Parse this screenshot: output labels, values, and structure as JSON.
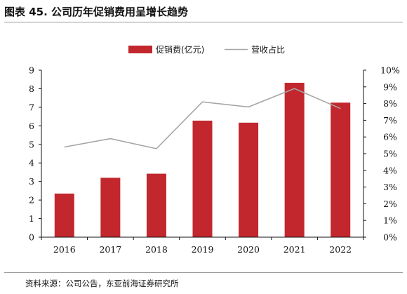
{
  "figure": {
    "title": "图表 45. 公司历年促销费用呈增长趋势",
    "source": "资料来源：公司公告，东亚前海证券研究所"
  },
  "colors": {
    "bar": "#c1272d",
    "line": "#a6a6a6",
    "axis": "#111111"
  },
  "chart_data": {
    "type": "bar",
    "categories": [
      "2016",
      "2017",
      "2018",
      "2019",
      "2020",
      "2021",
      "2022"
    ],
    "series": [
      {
        "name": "促销费(亿元)",
        "type": "bar",
        "axis": "left",
        "values": [
          2.35,
          3.2,
          3.42,
          6.28,
          6.17,
          8.32,
          7.25
        ]
      },
      {
        "name": "营收占比",
        "type": "line",
        "axis": "right",
        "values": [
          5.4,
          5.9,
          5.3,
          8.1,
          7.8,
          8.9,
          7.7
        ]
      }
    ],
    "y_left": {
      "ylim": [
        0,
        9
      ],
      "ticks": [
        "0",
        "1",
        "2",
        "3",
        "4",
        "5",
        "6",
        "7",
        "8",
        "9"
      ]
    },
    "y_right": {
      "ylim": [
        0,
        10
      ],
      "ticks": [
        "0%",
        "1%",
        "2%",
        "3%",
        "4%",
        "5%",
        "6%",
        "7%",
        "8%",
        "9%",
        "10%"
      ]
    },
    "legend_position": "top-center",
    "grid": false
  }
}
